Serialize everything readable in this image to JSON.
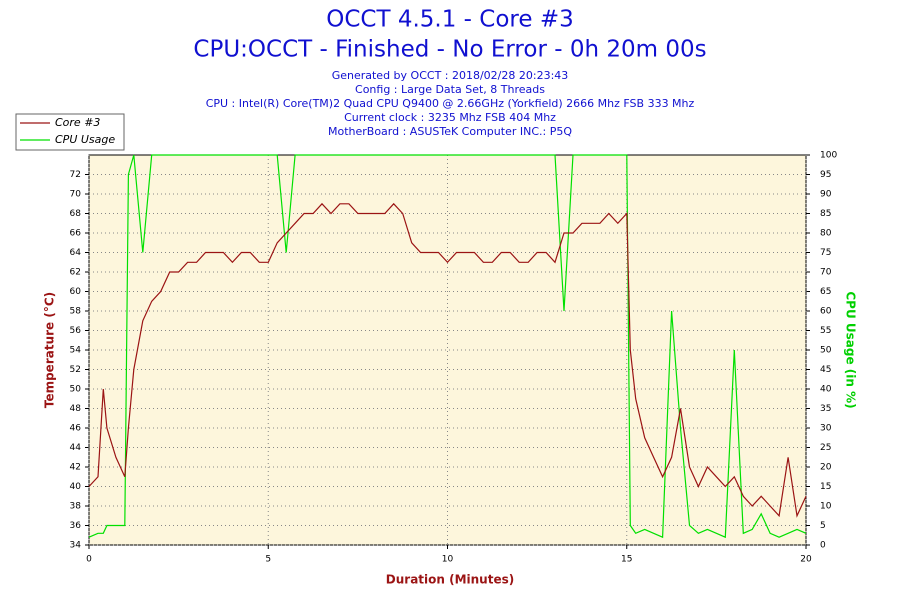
{
  "chart_data": {
    "type": "line",
    "title": "OCCT 4.5.1 - Core #3",
    "subtitle": "CPU:OCCT - Finished - No Error - 0h 20m 00s",
    "annotations": [
      "Generated by OCCT : 2018/02/28 20:23:43",
      "Config : Large Data Set, 8 Threads",
      "CPU : Intel(R) Core(TM)2 Quad CPU Q9400 @ 2.66GHz (Yorkfield) 2666 Mhz FSB 333 Mhz",
      "Current clock : 3235 Mhz FSB 404 Mhz",
      "MotherBoard : ASUSTeK Computer INC.: P5Q"
    ],
    "x_label": "Duration (Minutes)",
    "y_label": "Temperature (°C)",
    "y2_label": "CPU Usage (in %)",
    "x": [
      0,
      0.25,
      0.4,
      0.5,
      0.75,
      1,
      1.1,
      1.25,
      1.5,
      1.75,
      2,
      2.25,
      2.5,
      2.75,
      3,
      3.25,
      3.5,
      3.75,
      4,
      4.25,
      4.5,
      4.75,
      5,
      5.25,
      5.5,
      5.75,
      6,
      6.25,
      6.5,
      6.75,
      7,
      7.25,
      7.5,
      7.75,
      8,
      8.25,
      8.5,
      8.75,
      9,
      9.25,
      9.5,
      9.75,
      10,
      10.25,
      10.5,
      10.75,
      11,
      11.25,
      11.5,
      11.75,
      12,
      12.25,
      12.5,
      12.75,
      13,
      13.25,
      13.5,
      13.75,
      14,
      14.25,
      14.5,
      14.75,
      15,
      15.1,
      15.25,
      15.5,
      15.75,
      16,
      16.25,
      16.5,
      16.75,
      17,
      17.25,
      17.5,
      17.75,
      18,
      18.25,
      18.5,
      18.75,
      19,
      19.25,
      19.5,
      19.75,
      20
    ],
    "series": [
      {
        "name": "Core #3",
        "color": "#9b1414",
        "axis": "y",
        "values": [
          40,
          41,
          50,
          46,
          43,
          41,
          46,
          52,
          57,
          59,
          60,
          62,
          62,
          63,
          63,
          64,
          64,
          64,
          63,
          64,
          64,
          63,
          63,
          65,
          66,
          67,
          68,
          68,
          69,
          68,
          69,
          69,
          68,
          68,
          68,
          68,
          69,
          68,
          65,
          64,
          64,
          64,
          63,
          64,
          64,
          64,
          63,
          63,
          64,
          64,
          63,
          63,
          64,
          64,
          63,
          66,
          66,
          67,
          67,
          67,
          68,
          67,
          68,
          54,
          49,
          45,
          43,
          41,
          43,
          48,
          42,
          40,
          42,
          41,
          40,
          41,
          39,
          38,
          39,
          38,
          37,
          43,
          37,
          39
        ]
      },
      {
        "name": "CPU Usage",
        "color": "#00e000",
        "axis": "y2",
        "values": [
          2,
          3,
          3,
          5,
          5,
          5,
          95,
          100,
          75,
          100,
          100,
          100,
          100,
          100,
          100,
          100,
          100,
          100,
          100,
          100,
          100,
          100,
          100,
          100,
          75,
          100,
          100,
          100,
          100,
          100,
          100,
          100,
          100,
          100,
          100,
          100,
          100,
          100,
          100,
          100,
          100,
          100,
          100,
          100,
          100,
          100,
          100,
          100,
          100,
          100,
          100,
          100,
          100,
          100,
          100,
          60,
          100,
          100,
          100,
          100,
          100,
          100,
          100,
          5,
          3,
          4,
          3,
          2,
          60,
          30,
          5,
          3,
          4,
          3,
          2,
          50,
          3,
          4,
          8,
          3,
          2,
          3,
          4,
          3
        ]
      }
    ],
    "xlim": [
      0,
      20
    ],
    "xticks": [
      0,
      5,
      10,
      15,
      20
    ],
    "ylim": [
      34,
      74
    ],
    "yticks": [
      34,
      36,
      38,
      40,
      42,
      44,
      46,
      48,
      50,
      52,
      54,
      56,
      58,
      60,
      62,
      64,
      66,
      68,
      70,
      72
    ],
    "y2lim": [
      0,
      100
    ],
    "y2ticks": [
      0,
      5,
      10,
      15,
      20,
      25,
      30,
      35,
      40,
      45,
      50,
      55,
      60,
      65,
      70,
      75,
      80,
      85,
      90,
      95,
      100
    ],
    "grid": true
  }
}
